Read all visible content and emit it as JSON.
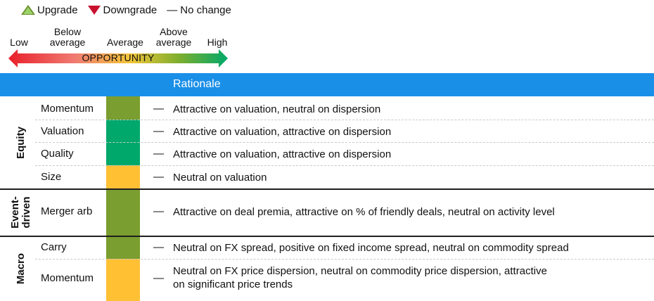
{
  "legend": {
    "upgrade": "Upgrade",
    "downgrade": "Downgrade",
    "no_change_symbol": "—",
    "no_change": "No change",
    "colors": {
      "upgrade": "#9bd36a",
      "downgrade": "#c8102e"
    }
  },
  "scale": {
    "low": "Low",
    "below_average": "Below average",
    "average": "Average",
    "above_average": "Above average",
    "high": "High",
    "arrow_label": "OPPORTUNITY",
    "gradient": [
      "#e8202a",
      "#f07a72",
      "#f5c63a",
      "#7cae2e",
      "#00a86b"
    ]
  },
  "table": {
    "header": "Rationale",
    "header_color": "#1a8fe8",
    "colors": {
      "above_average": "#7a9e2f",
      "high": "#00a86b",
      "average": "#ffc034"
    },
    "groups": [
      {
        "label": "Equity",
        "rows": [
          {
            "name": "Momentum",
            "rating": "above_average",
            "change": "—",
            "rationale": "Attractive on valuation, neutral on dispersion"
          },
          {
            "name": "Valuation",
            "rating": "high",
            "change": "—",
            "rationale": "Attractive on valuation, attractive on dispersion"
          },
          {
            "name": "Quality",
            "rating": "high",
            "change": "—",
            "rationale": "Attractive on valuation, attractive on dispersion"
          },
          {
            "name": "Size",
            "rating": "average",
            "change": "—",
            "rationale": "Neutral on valuation"
          }
        ]
      },
      {
        "label_line1": "Event-",
        "label_line2": "driven",
        "rows": [
          {
            "name": "Merger arb",
            "rating": "above_average",
            "change": "—",
            "rationale": "Attractive on deal premia, attractive on % of friendly deals, neutral on activity level"
          }
        ]
      },
      {
        "label": "Macro",
        "rows": [
          {
            "name": "Carry",
            "rating": "above_average",
            "change": "—",
            "rationale": "Neutral on FX spread, positive on fixed income spread, neutral on commodity spread"
          },
          {
            "name": "Momentum",
            "rating": "average",
            "change": "—",
            "rationale_line1": "Neutral on FX price dispersion, neutral on commodity price dispersion, attractive",
            "rationale_line2": "on significant price trends"
          }
        ]
      }
    ]
  }
}
